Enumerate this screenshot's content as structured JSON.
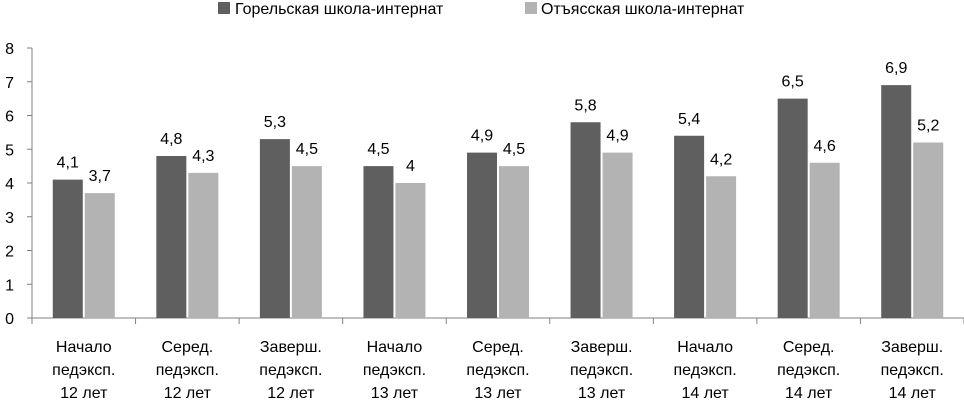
{
  "chart_data": {
    "type": "bar",
    "title": "",
    "xlabel": "",
    "ylabel": "",
    "ylim": [
      0,
      8
    ],
    "yticks": [
      0,
      1,
      2,
      3,
      4,
      5,
      6,
      7,
      8
    ],
    "grid": false,
    "legend_position": "top",
    "categories": [
      [
        "Начало",
        "педэксп.",
        "12 лет"
      ],
      [
        "Серед.",
        "педэксп.",
        "12 лет"
      ],
      [
        "Заверш.",
        "педэксп.",
        "12 лет"
      ],
      [
        "Начало",
        "педэксп.",
        "13 лет"
      ],
      [
        "Серед.",
        "педэксп.",
        "13 лет"
      ],
      [
        "Заверш.",
        "педэксп.",
        "13 лет"
      ],
      [
        "Начало",
        "педэксп.",
        "14 лет"
      ],
      [
        "Серед.",
        "педэксп.",
        "14 лет"
      ],
      [
        "Заверш.",
        "педэксп.",
        "14 лет"
      ]
    ],
    "series": [
      {
        "name": "Горельская школа-интернат",
        "color": "#5f5f5f",
        "values": [
          4.1,
          4.8,
          5.3,
          4.5,
          4.9,
          5.8,
          5.4,
          6.5,
          6.9
        ],
        "labels": [
          "4,1",
          "4,8",
          "5,3",
          "4,5",
          "4,9",
          "5,8",
          "5,4",
          "6,5",
          "6,9"
        ]
      },
      {
        "name": "Отъясская школа-интернат",
        "color": "#b3b3b3",
        "values": [
          3.7,
          4.3,
          4.5,
          4.0,
          4.5,
          4.9,
          4.2,
          4.6,
          5.2
        ],
        "labels": [
          "3,7",
          "4,3",
          "4,5",
          "4",
          "4,5",
          "4,9",
          "4,2",
          "4,6",
          "5,2"
        ]
      }
    ]
  }
}
